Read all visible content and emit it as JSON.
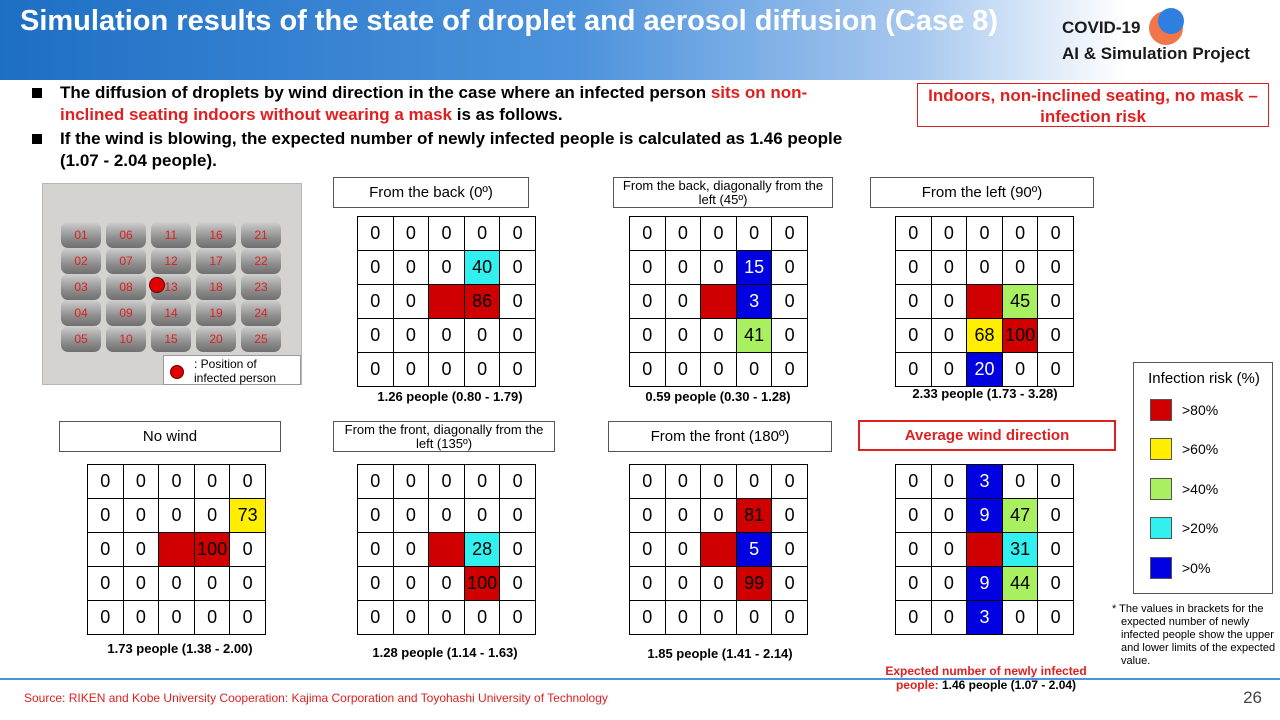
{
  "title": "Simulation results of the state of droplet and aerosol diffusion (Case 8)",
  "logo": {
    "line1": "COVID-19",
    "line2": "AI & Simulation Project"
  },
  "bullets": [
    {
      "before": "The diffusion of droplets by wind direction in the case where an infected person ",
      "highlight": "sits on non-inclined seating indoors without wearing a mask",
      "after": " is as follows."
    },
    {
      "before": "If the wind is blowing, the expected number of newly infected people is calculated as 1.46 people (1.07 - 2.04 people).",
      "highlight": "",
      "after": ""
    }
  ],
  "risk_box": "Indoors, non-inclined seating, no mask – infection risk",
  "seat_numbers": [
    [
      "01",
      "06",
      "11",
      "16",
      "21"
    ],
    [
      "02",
      "07",
      "12",
      "17",
      "22"
    ],
    [
      "03",
      "08",
      "13",
      "18",
      "23"
    ],
    [
      "04",
      "09",
      "14",
      "19",
      "24"
    ],
    [
      "05",
      "10",
      "15",
      "20",
      "25"
    ]
  ],
  "position_legend": {
    "label": ": Position of infected person"
  },
  "panels": [
    {
      "label": "From the back (0º)",
      "caption": "1.26 people (0.80 - 1.79)",
      "cells": [
        [
          "0",
          "0",
          "0",
          "0",
          "0"
        ],
        [
          "0",
          "0",
          "0",
          "40",
          "0"
        ],
        [
          "0",
          "0",
          "",
          "86",
          "0"
        ],
        [
          "0",
          "0",
          "0",
          "0",
          "0"
        ],
        [
          "0",
          "0",
          "0",
          "0",
          "0"
        ]
      ],
      "colors": [
        [
          "",
          "",
          "",
          "",
          ""
        ],
        [
          "",
          "",
          "",
          "cyan",
          ""
        ],
        [
          "",
          "",
          "red",
          "red",
          ""
        ],
        [
          "",
          "",
          "",
          "",
          ""
        ],
        [
          "",
          "",
          "",
          "",
          ""
        ]
      ]
    },
    {
      "label": "From the back, diagonally from the left (45º)",
      "caption": "0.59 people (0.30 - 1.28)",
      "cells": [
        [
          "0",
          "0",
          "0",
          "0",
          "0"
        ],
        [
          "0",
          "0",
          "0",
          "15",
          "0"
        ],
        [
          "0",
          "0",
          "",
          "3",
          "0"
        ],
        [
          "0",
          "0",
          "0",
          "41",
          "0"
        ],
        [
          "0",
          "0",
          "0",
          "0",
          "0"
        ]
      ],
      "colors": [
        [
          "",
          "",
          "",
          "",
          ""
        ],
        [
          "",
          "",
          "",
          "blue",
          ""
        ],
        [
          "",
          "",
          "red",
          "blue",
          ""
        ],
        [
          "",
          "",
          "",
          "lime",
          ""
        ],
        [
          "",
          "",
          "",
          "",
          ""
        ]
      ]
    },
    {
      "label": "From the left (90º)",
      "caption": "2.33 people (1.73 - 3.28)",
      "cells": [
        [
          "0",
          "0",
          "0",
          "0",
          "0"
        ],
        [
          "0",
          "0",
          "0",
          "0",
          "0"
        ],
        [
          "0",
          "0",
          "",
          "45",
          "0"
        ],
        [
          "0",
          "0",
          "68",
          "100",
          "0"
        ],
        [
          "0",
          "0",
          "20",
          "0",
          "0"
        ]
      ],
      "colors": [
        [
          "",
          "",
          "",
          "",
          ""
        ],
        [
          "",
          "",
          "",
          "",
          ""
        ],
        [
          "",
          "",
          "red",
          "lime",
          ""
        ],
        [
          "",
          "",
          "yellow",
          "red",
          ""
        ],
        [
          "",
          "",
          "blue",
          "",
          ""
        ]
      ]
    },
    {
      "label": "No wind",
      "caption": "1.73 people (1.38 - 2.00)",
      "cells": [
        [
          "0",
          "0",
          "0",
          "0",
          "0"
        ],
        [
          "0",
          "0",
          "0",
          "0",
          "73"
        ],
        [
          "0",
          "0",
          "",
          "100",
          "0"
        ],
        [
          "0",
          "0",
          "0",
          "0",
          "0"
        ],
        [
          "0",
          "0",
          "0",
          "0",
          "0"
        ]
      ],
      "colors": [
        [
          "",
          "",
          "",
          "",
          ""
        ],
        [
          "",
          "",
          "",
          "",
          "yellow"
        ],
        [
          "",
          "",
          "red",
          "red",
          ""
        ],
        [
          "",
          "",
          "",
          "",
          ""
        ],
        [
          "",
          "",
          "",
          "",
          ""
        ]
      ]
    },
    {
      "label": "From the front, diagonally from the left (135º)",
      "caption": "1.28 people (1.14 - 1.63)",
      "cells": [
        [
          "0",
          "0",
          "0",
          "0",
          "0"
        ],
        [
          "0",
          "0",
          "0",
          "0",
          "0"
        ],
        [
          "0",
          "0",
          "",
          "28",
          "0"
        ],
        [
          "0",
          "0",
          "0",
          "100",
          "0"
        ],
        [
          "0",
          "0",
          "0",
          "0",
          "0"
        ]
      ],
      "colors": [
        [
          "",
          "",
          "",
          "",
          ""
        ],
        [
          "",
          "",
          "",
          "",
          ""
        ],
        [
          "",
          "",
          "red",
          "cyan",
          ""
        ],
        [
          "",
          "",
          "",
          "red",
          ""
        ],
        [
          "",
          "",
          "",
          "",
          ""
        ]
      ]
    },
    {
      "label": "From the front (180º)",
      "caption": "1.85 people (1.41 - 2.14)",
      "cells": [
        [
          "0",
          "0",
          "0",
          "0",
          "0"
        ],
        [
          "0",
          "0",
          "0",
          "81",
          "0"
        ],
        [
          "0",
          "0",
          "",
          "5",
          "0"
        ],
        [
          "0",
          "0",
          "0",
          "99",
          "0"
        ],
        [
          "0",
          "0",
          "0",
          "0",
          "0"
        ]
      ],
      "colors": [
        [
          "",
          "",
          "",
          "",
          ""
        ],
        [
          "",
          "",
          "",
          "red",
          ""
        ],
        [
          "",
          "",
          "red",
          "blue",
          ""
        ],
        [
          "",
          "",
          "",
          "red",
          ""
        ],
        [
          "",
          "",
          "",
          "",
          ""
        ]
      ]
    },
    {
      "label": "Average wind direction",
      "caption": "",
      "cells": [
        [
          "0",
          "0",
          "3",
          "0",
          "0"
        ],
        [
          "0",
          "0",
          "9",
          "47",
          "0"
        ],
        [
          "0",
          "0",
          "",
          "31",
          "0"
        ],
        [
          "0",
          "0",
          "9",
          "44",
          "0"
        ],
        [
          "0",
          "0",
          "3",
          "0",
          "0"
        ]
      ],
      "colors": [
        [
          "",
          "",
          "blue",
          "",
          ""
        ],
        [
          "",
          "",
          "blue",
          "lime",
          ""
        ],
        [
          "",
          "",
          "red",
          "cyan",
          ""
        ],
        [
          "",
          "",
          "blue",
          "lime",
          ""
        ],
        [
          "",
          "",
          "blue",
          "",
          ""
        ]
      ]
    }
  ],
  "avg_caption": {
    "label": "Expected number of newly infected people: ",
    "value": "1.46 people (1.07 - 2.04)"
  },
  "infection_legend": {
    "title": "Infection risk (%)",
    "items": [
      {
        "label": ">80%",
        "color": "#d00000"
      },
      {
        "label": ">60%",
        "color": "#ffee00"
      },
      {
        "label": ">40%",
        "color": "#a8f060"
      },
      {
        "label": ">20%",
        "color": "#33f0f0"
      },
      {
        "label": ">0%",
        "color": "#0000e0"
      }
    ]
  },
  "footnote": "* The values in brackets for the expected number of newly infected people show the upper and lower limits of the expected value.",
  "source": "Source: RIKEN and Kobe University Cooperation: Kajima Corporation and Toyohashi University of Technology",
  "page_number": "26"
}
